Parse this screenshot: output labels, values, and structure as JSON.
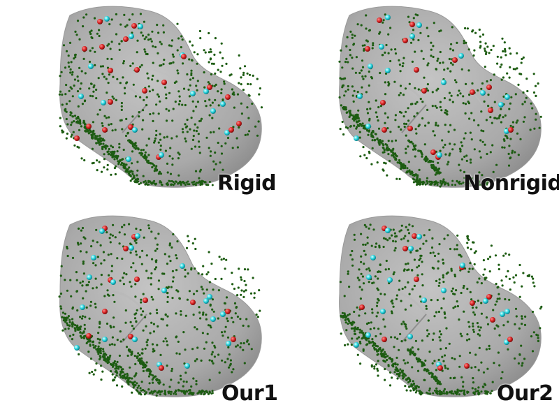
{
  "panels": [
    {
      "label": "Rigid"
    },
    {
      "label": "Nonrigid"
    },
    {
      "label": "Our1"
    },
    {
      "label": "Our2"
    }
  ],
  "colors": {
    "surface": "#a9a9a9",
    "surface_light": "#c4c4c4",
    "surface_dark": "#8a8a8a",
    "vessel_points": "#1d5c12",
    "marker_red": "#d42020",
    "marker_cyan": "#28d6e0",
    "label_text": "#111111"
  }
}
